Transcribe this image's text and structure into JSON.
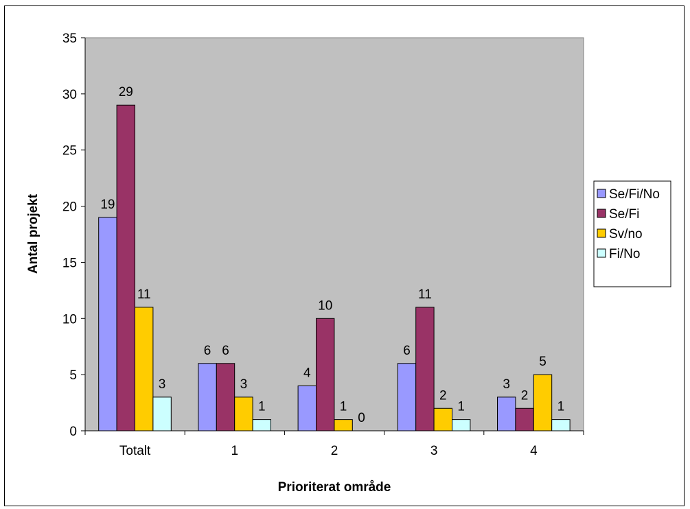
{
  "chart_data": {
    "type": "bar",
    "title": "",
    "xlabel": "Prioriterat område",
    "ylabel": "Antal projekt",
    "categories": [
      "Totalt",
      "1",
      "2",
      "3",
      "4"
    ],
    "ylim": [
      0,
      35
    ],
    "yticks": [
      0,
      5,
      10,
      15,
      20,
      25,
      30,
      35
    ],
    "grid": false,
    "plot_background": "#C0C0C0",
    "legend_position": "right",
    "series": [
      {
        "name": "Se/Fi/No",
        "color": "#9999FF",
        "values": [
          19,
          6,
          4,
          6,
          3
        ]
      },
      {
        "name": "Se/Fi",
        "color": "#993366",
        "values": [
          29,
          6,
          10,
          11,
          2
        ]
      },
      {
        "name": "Sv/no",
        "color": "#FFCC00",
        "values": [
          11,
          3,
          1,
          2,
          5
        ]
      },
      {
        "name": "Fi/No",
        "color": "#CCFFFF",
        "values": [
          3,
          1,
          0,
          1,
          1
        ]
      }
    ]
  }
}
